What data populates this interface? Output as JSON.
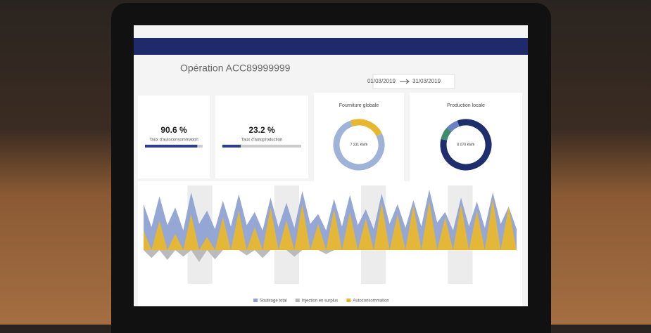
{
  "header": {
    "title": "Opération ACC89999999",
    "date_from": "01/03/2019",
    "date_to": "31/03/2019"
  },
  "kpis": [
    {
      "value": 90.6,
      "value_label": "90.6 %",
      "label": "Taux d'autoconsommation",
      "color": "#2b3f8c"
    },
    {
      "value": 23.2,
      "value_label": "23.2 %",
      "label": "Taux d'autoproduction",
      "color": "#2b3f8c"
    }
  ],
  "donuts": [
    {
      "title": "Fourniture globale",
      "total_label": "7 231 KWh",
      "segments": [
        {
          "color": "#e8b730",
          "value": 23.2
        },
        {
          "color": "#9fb3d8",
          "value": 76.8
        }
      ]
    },
    {
      "title": "Production locale",
      "total_label": "8 070 KWh",
      "segments": [
        {
          "color": "#1f2f6e",
          "value": 84
        },
        {
          "color": "#3f8c6a",
          "value": 8
        },
        {
          "color": "#6a80c0",
          "value": 8
        }
      ]
    }
  ],
  "chart": {
    "type": "area",
    "series": [
      {
        "name": "Soutirage total",
        "color": "#8fa3d3",
        "values": [
          70,
          35,
          82,
          38,
          65,
          30,
          88,
          40,
          60,
          32,
          75,
          36,
          85,
          38,
          58,
          30,
          80,
          35,
          72,
          34,
          90,
          40,
          55,
          30,
          78,
          36,
          84,
          38,
          62,
          32,
          86,
          40,
          70,
          34,
          76,
          36,
          92,
          42,
          58,
          30,
          80,
          36,
          74,
          34,
          88,
          40,
          66,
          32
        ]
      },
      {
        "name": "Injection en surplus",
        "color": "#b7b7b7",
        "values": [
          0,
          12,
          0,
          15,
          0,
          10,
          0,
          18,
          0,
          14,
          0,
          0,
          0,
          8,
          0,
          12,
          0,
          0,
          0,
          10,
          0,
          0,
          0,
          6,
          0,
          0,
          0,
          0,
          0,
          0,
          0,
          0,
          0,
          0,
          0,
          0,
          0,
          0,
          0,
          0,
          0,
          0,
          0,
          0,
          0,
          0,
          0,
          0
        ]
      },
      {
        "name": "Autoconsommation",
        "color": "#e8b730",
        "values": [
          30,
          0,
          45,
          0,
          25,
          0,
          55,
          0,
          20,
          0,
          50,
          0,
          60,
          0,
          35,
          0,
          65,
          0,
          45,
          0,
          70,
          0,
          40,
          0,
          62,
          0,
          58,
          0,
          48,
          0,
          72,
          0,
          55,
          0,
          68,
          0,
          75,
          0,
          50,
          0,
          70,
          0,
          60,
          0,
          78,
          0,
          66,
          0
        ]
      }
    ]
  }
}
